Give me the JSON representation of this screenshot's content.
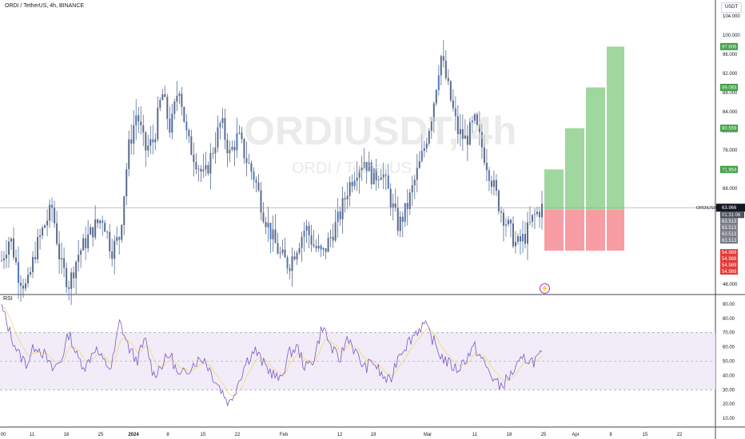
{
  "header": {
    "title": "ORDI / TetherUS, 4h, BINANCE",
    "currency_button": "USDT",
    "watermark_symbol": "ORDIUSDT, 4h",
    "watermark_name": "ORDI / TetherUS"
  },
  "chart_data": [
    {
      "type": "candlestick",
      "title": "ORDI / TetherUS, 4h, BINANCE",
      "y_ticks": [
        104,
        100,
        96,
        92,
        88,
        84,
        80,
        76,
        68,
        48
      ],
      "y_tick_labels": [
        "104.000",
        "100.000",
        "96.000",
        "92.000",
        "88.000",
        "84.000",
        "80.000",
        "76.000",
        "68.000",
        "48.000"
      ],
      "ylim": [
        46,
        105
      ],
      "x_tick_labels": [
        "00",
        "11",
        "18",
        "25",
        "2024",
        "8",
        "15",
        "22",
        "Feb",
        "12",
        "19",
        "Mar",
        "11",
        "18",
        "25",
        "Apr",
        "8",
        "15",
        "22"
      ],
      "price_path": [
        53,
        58,
        50,
        47,
        55,
        60,
        64,
        52,
        48,
        54,
        57,
        60,
        62,
        55,
        58,
        76,
        84,
        76,
        78,
        88,
        80,
        90,
        78,
        74,
        70,
        76,
        82,
        75,
        79,
        74,
        70,
        63,
        58,
        54,
        52,
        56,
        60,
        56,
        54,
        58,
        62,
        68,
        72,
        74,
        70,
        72,
        66,
        60,
        64,
        70,
        76,
        84,
        96,
        88,
        80,
        78,
        82,
        76,
        70,
        64,
        60,
        56,
        58,
        62,
        63.966
      ],
      "current": {
        "symbol": "ORDIUSDT",
        "price": "63.966",
        "countdown": "01:31:06",
        "color": "#131722"
      },
      "projection": {
        "entry": 63.513,
        "stop": 54.989,
        "targets": [
          71.954,
          80.559,
          89.083,
          97.606
        ],
        "target_labels": [
          "71.954",
          "80.559",
          "89.083",
          "97.606"
        ],
        "entry_labels": [
          "63.513",
          "63.513",
          "63.513",
          "63.513"
        ],
        "stop_labels": [
          "54.989",
          "54.989",
          "54.989",
          "54.989"
        ],
        "profit_color": "#7fc97f",
        "loss_color": "#f7858e",
        "target_label_color": "#43a047",
        "stop_label_color": "#e53935",
        "entry_label_color": "#787b86"
      },
      "candle_color": "#5b6b8c",
      "candle_accent_color": "#4a78c8"
    },
    {
      "type": "line",
      "title": "RSI",
      "y_ticks": [
        90,
        80,
        70,
        60,
        50,
        40,
        30,
        20,
        10
      ],
      "y_tick_labels": [
        "90.00",
        "80.00",
        "70.00",
        "60.00",
        "50.00",
        "40.00",
        "30.00",
        "20.00",
        "10.00"
      ],
      "ylim": [
        5,
        95
      ],
      "upper_band": 70,
      "middle_band": 50,
      "lower_band": 30,
      "rsi_path": [
        88,
        70,
        55,
        48,
        62,
        55,
        44,
        50,
        70,
        52,
        46,
        60,
        50,
        45,
        78,
        60,
        50,
        65,
        40,
        48,
        55,
        38,
        44,
        50,
        52,
        40,
        30,
        20,
        35,
        50,
        58,
        48,
        42,
        36,
        55,
        60,
        45,
        52,
        75,
        60,
        50,
        68,
        55,
        45,
        50,
        40,
        35,
        55,
        62,
        70,
        76,
        66,
        54,
        48,
        44,
        52,
        60,
        50,
        40,
        32,
        38,
        46,
        52,
        50,
        53.9
      ],
      "rsi_color": "#7e57c2",
      "signal_color": "#f5d76e",
      "band_fill": "#ede7f6"
    }
  ],
  "rsi_label": "RSI",
  "replay_icon": "⚡"
}
